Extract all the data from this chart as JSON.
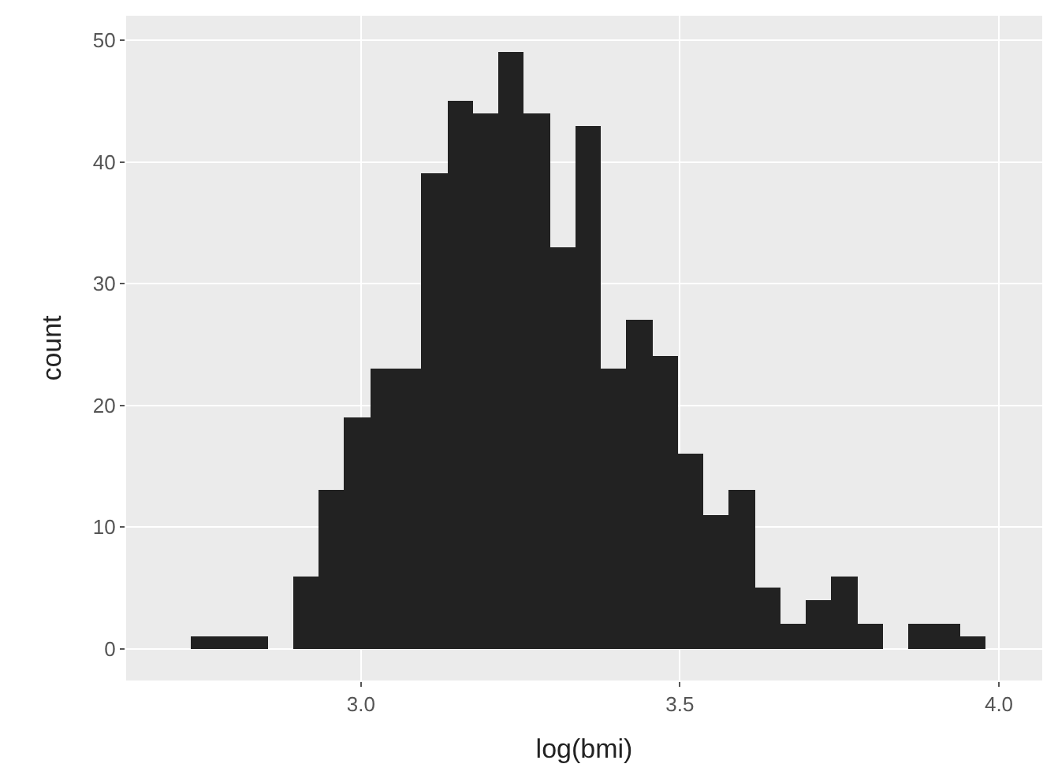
{
  "chart_data": {
    "type": "histogram",
    "xlabel": "log(bmi)",
    "ylabel": "count",
    "color": "#222222",
    "bins": [
      2.733,
      2.773,
      2.813,
      2.854,
      2.894,
      2.934,
      2.974,
      3.014,
      3.055,
      3.095,
      3.135,
      3.175,
      3.215,
      3.256,
      3.296,
      3.336,
      3.376,
      3.416,
      3.457,
      3.497,
      3.537,
      3.577,
      3.617,
      3.658,
      3.698,
      3.738,
      3.778,
      3.818,
      3.859,
      3.899,
      3.939,
      3.979
    ],
    "values": [
      1,
      1,
      1,
      0,
      6,
      13,
      19,
      23,
      23,
      39,
      45,
      44,
      49,
      44,
      33,
      43,
      23,
      27,
      24,
      16,
      11,
      13,
      5,
      2,
      4,
      6,
      2,
      0,
      2,
      2,
      1
    ],
    "xlim": [
      2.632,
      4.068
    ],
    "ylim": [
      -2.6,
      52
    ],
    "xticks": [
      {
        "value": 3,
        "label": "3.0"
      },
      {
        "value": 3.5,
        "label": "3.5"
      },
      {
        "value": 4,
        "label": "4.0"
      }
    ],
    "yticks": [
      0,
      10,
      20,
      30,
      40,
      50
    ],
    "grid": true
  }
}
